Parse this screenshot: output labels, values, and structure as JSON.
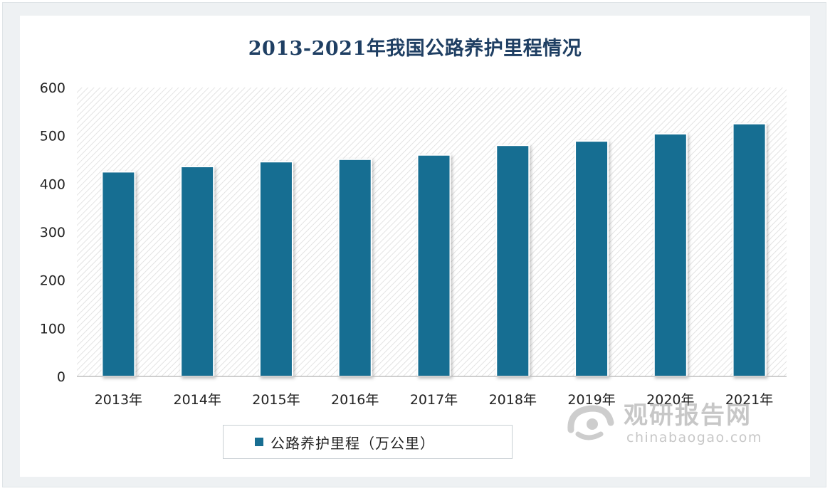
{
  "chart_data": {
    "type": "bar",
    "title": "2013-2021年我国公路养护里程情况",
    "categories": [
      "2013年",
      "2014年",
      "2015年",
      "2016年",
      "2017年",
      "2018年",
      "2019年",
      "2020年",
      "2021年"
    ],
    "series": [
      {
        "name": "公路养护里程（万公里）",
        "values": [
          425,
          436,
          446,
          451,
          460,
          480,
          489,
          504,
          525
        ]
      }
    ],
    "yticks": [
      "0",
      "100",
      "200",
      "300",
      "400",
      "500",
      "600"
    ],
    "ylim": [
      0,
      600
    ],
    "grid": false,
    "legend": "bottom",
    "bar_color": "#186e92"
  },
  "watermark": {
    "cn": "观研报告网",
    "en": "chinabaogao.com"
  }
}
